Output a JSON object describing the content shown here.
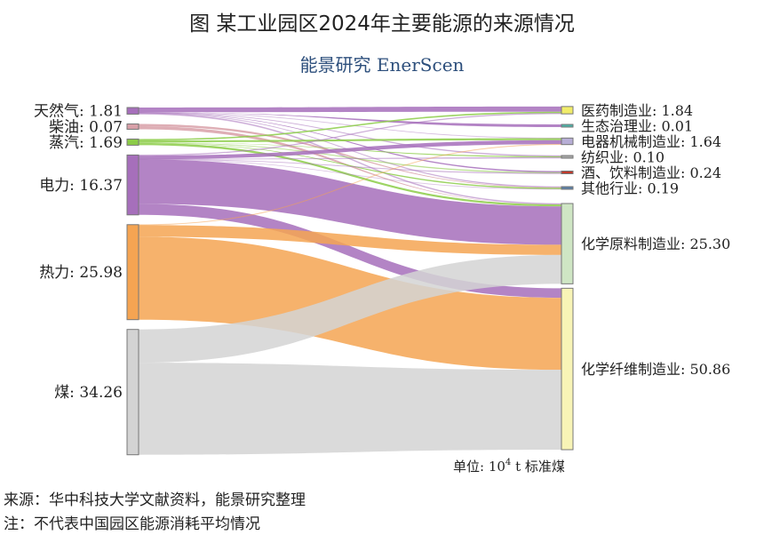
{
  "chart_data": {
    "type": "sankey",
    "title": "图 某工业园区2024年主要能源的来源情况",
    "logo_text": "能景研究 EnerScen",
    "unit_prefix": "单位: 10",
    "unit_sup": "4",
    "unit_suffix": " t 标准煤",
    "label_separator": ": ",
    "sources": [
      {
        "id": "ng",
        "name": "天然气",
        "value": 1.81,
        "value_text": "1.81",
        "color": "#a66fbb"
      },
      {
        "id": "diesel",
        "name": "柴油",
        "value": 0.07,
        "value_text": "0.07",
        "color": "#d8a0a8"
      },
      {
        "id": "steam",
        "name": "蒸汽",
        "value": 1.69,
        "value_text": "1.69",
        "color": "#8ccc48"
      },
      {
        "id": "elec",
        "name": "电力",
        "value": 16.37,
        "value_text": "16.37",
        "color": "#a66fbb"
      },
      {
        "id": "heat",
        "name": "热力",
        "value": 25.98,
        "value_text": "25.98",
        "color": "#f5a452"
      },
      {
        "id": "coal",
        "name": "煤",
        "value": 34.26,
        "value_text": "34.26",
        "color": "#d3d3d3"
      }
    ],
    "targets": [
      {
        "id": "pharma",
        "name": "医药制造业",
        "value": 1.84,
        "value_text": "1.84",
        "color": "#f1ec6a"
      },
      {
        "id": "eco",
        "name": "生态治理业",
        "value": 0.01,
        "value_text": "0.01",
        "color": "#4cb3a8"
      },
      {
        "id": "machine",
        "name": "电器机械制造业",
        "value": 1.64,
        "value_text": "1.64",
        "color": "#b7aed6"
      },
      {
        "id": "textile",
        "name": "纺织业",
        "value": 0.1,
        "value_text": "0.10",
        "color": "#a7a7a7"
      },
      {
        "id": "bev",
        "name": "酒、饮料制造业",
        "value": 0.24,
        "value_text": "0.24",
        "color": "#c0392b"
      },
      {
        "id": "other",
        "name": "其他行业",
        "value": 0.19,
        "value_text": "0.19",
        "color": "#5a7fa8"
      },
      {
        "id": "chem",
        "name": "化学原料制造业",
        "value": 25.3,
        "value_text": "25.30",
        "color": "#cfe6c4"
      },
      {
        "id": "fiber",
        "name": "化学纤维制造业",
        "value": 50.86,
        "value_text": "50.86",
        "color": "#f8f4b6"
      }
    ],
    "links": [
      {
        "source": "ng",
        "target": "pharma",
        "value": 1.3
      },
      {
        "source": "ng",
        "target": "eco",
        "value": 0.01
      },
      {
        "source": "ng",
        "target": "machine",
        "value": 0.04
      },
      {
        "source": "ng",
        "target": "textile",
        "value": 0.03
      },
      {
        "source": "ng",
        "target": "bev",
        "value": 0.12
      },
      {
        "source": "ng",
        "target": "other",
        "value": 0.05
      },
      {
        "source": "ng",
        "target": "chem",
        "value": 0.26
      },
      {
        "source": "diesel",
        "target": "other",
        "value": 0.03
      },
      {
        "source": "diesel",
        "target": "chem",
        "value": 0.04
      },
      {
        "source": "steam",
        "target": "pharma",
        "value": 0.38
      },
      {
        "source": "steam",
        "target": "machine",
        "value": 0.5
      },
      {
        "source": "steam",
        "target": "textile",
        "value": 0.04
      },
      {
        "source": "steam",
        "target": "bev",
        "value": 0.07
      },
      {
        "source": "steam",
        "target": "other",
        "value": 0.1
      },
      {
        "source": "steam",
        "target": "chem",
        "value": 0.6
      },
      {
        "source": "elec",
        "target": "pharma",
        "value": 0.16
      },
      {
        "source": "elec",
        "target": "machine",
        "value": 1.0
      },
      {
        "source": "elec",
        "target": "textile",
        "value": 0.03
      },
      {
        "source": "elec",
        "target": "bev",
        "value": 0.05
      },
      {
        "source": "elec",
        "target": "other",
        "value": 0.01
      },
      {
        "source": "elec",
        "target": "chem",
        "value": 12.1
      },
      {
        "source": "elec",
        "target": "fiber",
        "value": 3.02
      },
      {
        "source": "heat",
        "target": "machine",
        "value": 0.1
      },
      {
        "source": "heat",
        "target": "chem",
        "value": 3.2
      },
      {
        "source": "heat",
        "target": "fiber",
        "value": 22.68
      },
      {
        "source": "coal",
        "target": "chem",
        "value": 9.1
      },
      {
        "source": "coal",
        "target": "fiber",
        "value": 25.16
      }
    ]
  },
  "footnotes": {
    "source": "来源：华中科技大学文献资料，能景研究整理",
    "note": "注：不代表中国园区能源消耗平均情况"
  }
}
